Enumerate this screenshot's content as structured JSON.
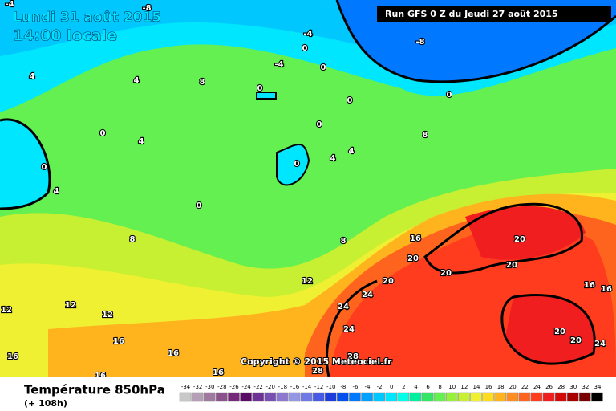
{
  "header": {
    "date": "Lundi 31 août 2015",
    "time": "14:00 locale",
    "run": "Run GFS 0 Z du Jeudi 27 août 2015"
  },
  "copyright": "Copyright © 2015 Meteociel.fr",
  "footer": {
    "title": "Température 850hPa",
    "lead": "(+ 108h)"
  },
  "legend": {
    "values": [
      -34,
      -32,
      -30,
      -28,
      -26,
      -24,
      -22,
      -20,
      -18,
      -16,
      -14,
      -12,
      -10,
      -8,
      -6,
      -4,
      -2,
      0,
      2,
      4,
      6,
      8,
      10,
      12,
      14,
      16,
      18,
      20,
      22,
      24,
      26,
      28,
      30,
      32,
      34
    ],
    "colors": [
      "#c8c8c8",
      "#b4a0b4",
      "#a078a0",
      "#8c508c",
      "#78287a",
      "#5a0a64",
      "#6e3296",
      "#7850b4",
      "#8c78d2",
      "#9696e6",
      "#6e78e6",
      "#465ae6",
      "#1e3cdc",
      "#0050f0",
      "#0078ff",
      "#00a0ff",
      "#00c8ff",
      "#00e6ff",
      "#00ffe6",
      "#00f0a0",
      "#32e664",
      "#64f050",
      "#96f03c",
      "#c8f032",
      "#f0f032",
      "#ffdc1e",
      "#ffb41e",
      "#ff8c1e",
      "#ff641e",
      "#ff3c1e",
      "#f01e1e",
      "#d20a0a",
      "#aa0000",
      "#780000",
      "#000000"
    ]
  },
  "contour_labels": [
    -4,
    -8,
    -4,
    -8,
    0,
    -4,
    0,
    4,
    4,
    8,
    0,
    0,
    0,
    0,
    4,
    0,
    0,
    8,
    4,
    4,
    0,
    4,
    0,
    8,
    8,
    16,
    20,
    20,
    20,
    12,
    20,
    20,
    24,
    24,
    12,
    12,
    12,
    24,
    16,
    16,
    16,
    16,
    16,
    28,
    28,
    20,
    20,
    24,
    16,
    16
  ]
}
